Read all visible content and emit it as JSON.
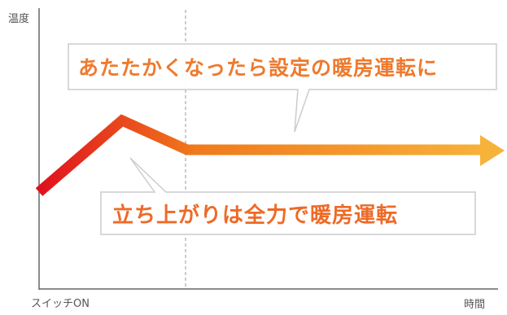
{
  "axes": {
    "y_label": "温度",
    "x_start_label": "スイッチON",
    "x_end_label": "時間"
  },
  "callouts": {
    "upper": "あたたかくなったら設定の暖房運転に",
    "lower": "立ち上がりは全力で暖房運転"
  },
  "colors": {
    "line_start": "#e0101e",
    "line_mid": "#f07a1c",
    "line_end": "#f7b23a",
    "upper_text": "#ee7a2e",
    "lower_text": "#ee6a27",
    "callout_border": "#cccccc",
    "axis": "#666666"
  }
}
